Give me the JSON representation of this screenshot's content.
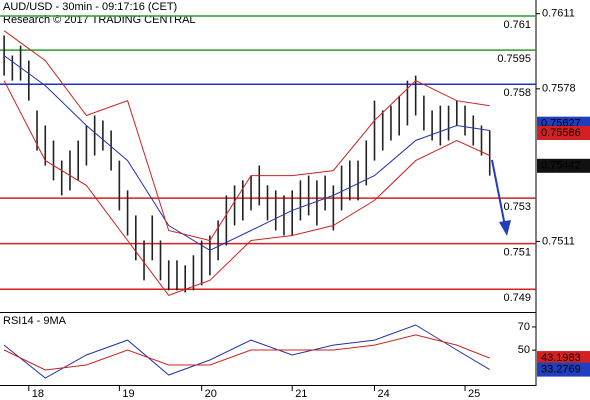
{
  "chart_data": [
    {
      "type": "range",
      "title": "AUD/USD - 30min - 09:17:16 (CET)",
      "subtitle": "Research © 2017 TRADING CENTRAL",
      "bar_color": "#222222",
      "high": [
        0.76014,
        0.75926,
        0.7597,
        0.75904,
        0.75685,
        0.75619,
        0.75553,
        0.75465,
        0.75509,
        0.75553,
        0.75619,
        0.75663,
        0.75641,
        0.75597,
        0.75465,
        0.75334,
        0.75224,
        0.75114,
        0.75224,
        0.75114,
        0.75027,
        0.75027,
        0.75005,
        0.75049,
        0.75114,
        0.75136,
        0.75202,
        0.75312,
        0.75356,
        0.75378,
        0.75399,
        0.75443,
        0.75356,
        0.75334,
        0.75312,
        0.75334,
        0.75378,
        0.75399,
        0.75378,
        0.75399,
        0.75356,
        0.75443,
        0.75465,
        0.75465,
        0.75553,
        0.75728,
        0.75685,
        0.75706,
        0.7575,
        0.75816,
        0.75838,
        0.7575,
        0.75685,
        0.75706,
        0.75706,
        0.75728,
        0.75706,
        0.75663,
        0.75619,
        0.75597
      ],
      "low": [
        0.75838,
        0.75816,
        0.75816,
        0.75728,
        0.75509,
        0.75443,
        0.75378,
        0.75312,
        0.75334,
        0.75378,
        0.75443,
        0.75487,
        0.75509,
        0.75421,
        0.75246,
        0.75136,
        0.75027,
        0.74939,
        0.75027,
        0.74939,
        0.74895,
        0.74895,
        0.74886,
        0.74895,
        0.74917,
        0.74961,
        0.75027,
        0.75092,
        0.7518,
        0.75202,
        0.75246,
        0.75268,
        0.75202,
        0.75158,
        0.75136,
        0.75136,
        0.75202,
        0.75224,
        0.7518,
        0.75246,
        0.75158,
        0.75246,
        0.7529,
        0.7529,
        0.75356,
        0.75465,
        0.75509,
        0.75553,
        0.75575,
        0.75619,
        0.75663,
        0.75597,
        0.75553,
        0.75531,
        0.75553,
        0.75619,
        0.75575,
        0.75531,
        0.75487,
        0.75399
      ],
      "overlays": [
        {
          "color": "#2233aa",
          "x": [
            0,
            5,
            10,
            15,
            20,
            25,
            30,
            35,
            40,
            45,
            50,
            55,
            59
          ],
          "values": [
            0.75926,
            0.75794,
            0.75619,
            0.75465,
            0.7518,
            0.75071,
            0.75158,
            0.75246,
            0.75312,
            0.75399,
            0.75553,
            0.75619,
            0.75597
          ]
        },
        {
          "color": "#cc2222",
          "x": [
            0,
            5,
            10,
            15,
            20,
            25,
            30,
            35,
            40,
            45,
            50,
            55,
            59
          ],
          "values": [
            0.76035,
            0.75904,
            0.75663,
            0.75728,
            0.75158,
            0.75114,
            0.75399,
            0.75399,
            0.75421,
            0.75641,
            0.75816,
            0.75728,
            0.75706
          ]
        },
        {
          "color": "#cc2222",
          "x": [
            0,
            5,
            10,
            15,
            20,
            25,
            30,
            35,
            40,
            45,
            50,
            55,
            59
          ],
          "values": [
            0.75816,
            0.75465,
            0.75356,
            0.75114,
            0.74873,
            0.74939,
            0.75114,
            0.75136,
            0.7518,
            0.7529,
            0.75465,
            0.75553,
            0.75487
          ]
        }
      ],
      "levels": [
        {
          "value": 0.761,
          "color": "#2e9a2e"
        },
        {
          "value": 0.7595,
          "color": "#2e9a2e"
        },
        {
          "value": 0.758,
          "color": "#1f2fd0"
        },
        {
          "value": 0.753,
          "color": "#d42020"
        },
        {
          "value": 0.751,
          "color": "#d42020"
        },
        {
          "value": 0.749,
          "color": "#d42020"
        }
      ],
      "price_markers": [
        {
          "value": 0.75627,
          "color": "#1f3fbf"
        },
        {
          "value": 0.75586,
          "color": "#d42020"
        },
        {
          "value": 0.75442,
          "color": "#111111"
        }
      ],
      "xlim": [
        -0.5,
        64.5
      ],
      "ylim": [
        0.748,
        0.7617
      ],
      "yticks": [
        0.7611,
        0.7578,
        0.7511
      ]
    },
    {
      "type": "line",
      "title": "RSI14 - 9MA",
      "series": [
        {
          "color": "#2233aa",
          "x": [
            0,
            5,
            10,
            15,
            20,
            25,
            30,
            35,
            40,
            45,
            50,
            55,
            59
          ],
          "values": [
            54.4,
            26,
            45.8,
            58.7,
            28.6,
            41.5,
            58.7,
            45.8,
            54.4,
            58.7,
            71.7,
            50.1,
            33.3
          ]
        },
        {
          "color": "#cc2222",
          "x": [
            0,
            5,
            10,
            15,
            20,
            25,
            30,
            35,
            40,
            45,
            50,
            55,
            59
          ],
          "values": [
            50.1,
            32.9,
            37.2,
            50.1,
            37.2,
            37.2,
            50.1,
            50.1,
            50.1,
            54.4,
            63.1,
            54.4,
            43.2
          ]
        }
      ],
      "value_markers": [
        {
          "value": 43.1983,
          "color": "#d42020"
        },
        {
          "value": 33.2769,
          "color": "#1f3fbf"
        }
      ],
      "xlim": [
        -0.5,
        64.5
      ],
      "ylim": [
        20,
        82
      ],
      "yticks": [
        70,
        50
      ],
      "xticks": [
        {
          "value": 3,
          "label": "18"
        },
        {
          "value": 14,
          "label": "19"
        },
        {
          "value": 24,
          "label": "20"
        },
        {
          "value": 35,
          "label": "21"
        },
        {
          "value": 45,
          "label": "24"
        },
        {
          "value": 56,
          "label": "25"
        }
      ]
    }
  ]
}
